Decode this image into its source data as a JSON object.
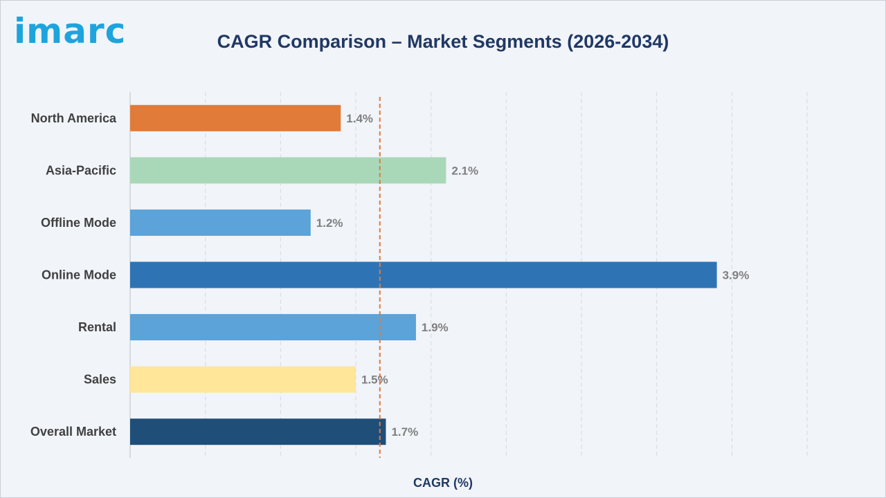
{
  "logo": {
    "text": "imarc"
  },
  "chart_data": {
    "type": "bar",
    "orientation": "horizontal",
    "title": "CAGR Comparison – Market Segments (2026-2034)",
    "xlabel": "CAGR (%)",
    "ylabel": "",
    "xlim": [
      0,
      4.5
    ],
    "grid": true,
    "categories": [
      "North America",
      "Asia-Pacific",
      "Offline Mode",
      "Online Mode",
      "Rental",
      "Sales",
      "Overall Market"
    ],
    "values": [
      1.4,
      2.1,
      1.2,
      3.9,
      1.9,
      1.5,
      1.7
    ],
    "value_labels": [
      "1.4%",
      "2.1%",
      "1.2%",
      "3.9%",
      "1.9%",
      "1.5%",
      "1.7%"
    ],
    "bar_colors": [
      "#e07b39",
      "#a9d8b8",
      "#5ba3d9",
      "#2e74b5",
      "#5ba3d9",
      "#ffe699",
      "#1f4e79"
    ],
    "reference_line": {
      "value": 1.66,
      "color": "#e07b39",
      "style": "dashed"
    }
  },
  "colors": {
    "title": "#203864",
    "logo": "#1ea4dc",
    "category_text": "#404040",
    "value_text": "#7f7f7f",
    "grid": "#d9d9d9"
  }
}
